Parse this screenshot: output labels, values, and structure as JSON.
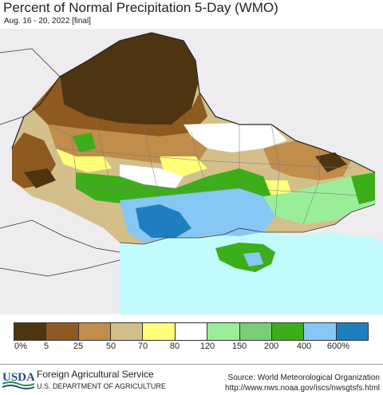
{
  "header": {
    "title": "Percent of Normal Precipitation 5-Day (WMO)",
    "subtitle": "Aug. 16 - 20, 2022 [final]"
  },
  "legend": {
    "colors": [
      "#4e3512",
      "#8e5a1f",
      "#c18d4b",
      "#d3bf8a",
      "#ffff78",
      "#ffffff",
      "#9aee9a",
      "#78cf78",
      "#3cae19",
      "#86c7f5",
      "#1f7ec0"
    ],
    "ticks": [
      "0%",
      "5",
      "25",
      "50",
      "70",
      "80",
      "120",
      "150",
      "200",
      "400",
      "600%"
    ]
  },
  "map": {
    "water_color": "#c2fbfb",
    "land_outside_color": "#efecef"
  },
  "footer": {
    "logo_text": "USDA",
    "agency": "Foreign Agricultural Service",
    "department": "U.S. DEPARTMENT OF AGRICULTURE",
    "source": "Source: World Meteorological Organization",
    "url": "http://www.nws.noaa.gov/iscs/nwsgtsfs.html"
  }
}
